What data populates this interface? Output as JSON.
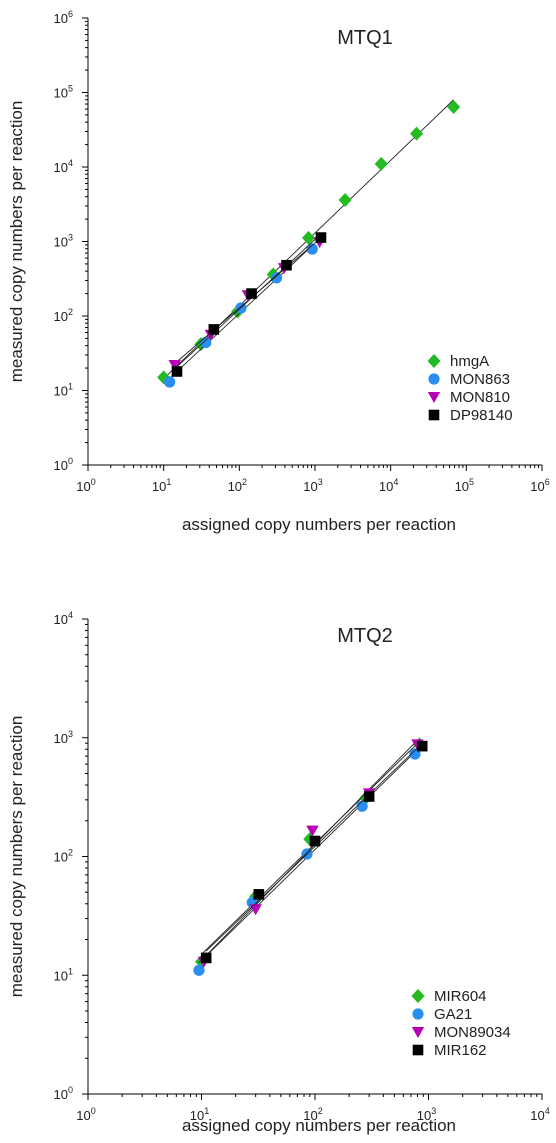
{
  "chart_data": [
    {
      "type": "scatter",
      "title": "MTQ1",
      "xlabel": "assigned copy numbers per reaction",
      "ylabel": "measured copy numbers per reaction",
      "xscale": "log",
      "yscale": "log",
      "xlim": [
        1,
        1000000
      ],
      "ylim": [
        1,
        1000000
      ],
      "tick_exponents": [
        "0",
        "1",
        "2",
        "3",
        "4",
        "5",
        "6"
      ],
      "tick_base": "10",
      "legend_position": "bottom-right",
      "trend_lines": true,
      "series": [
        {
          "name": "hmgA",
          "color": "#22bb22",
          "marker": "diamond",
          "x": [
            10,
            31,
            95,
            280,
            820,
            2500,
            7500,
            22000,
            68000
          ],
          "y": [
            15,
            42,
            115,
            360,
            1120,
            3600,
            11000,
            28000,
            64000
          ]
        },
        {
          "name": "MON863",
          "color": "#2a8ef0",
          "marker": "circle",
          "x": [
            12,
            36,
            105,
            310,
            920
          ],
          "y": [
            13,
            44,
            128,
            325,
            790
          ]
        },
        {
          "name": "MON810",
          "color": "#b800b8",
          "marker": "triangle-down",
          "x": [
            14,
            42,
            130,
            390,
            1150
          ],
          "y": [
            22,
            56,
            190,
            440,
            980
          ]
        },
        {
          "name": "DP98140",
          "color": "#000000",
          "marker": "square",
          "x": [
            15,
            46,
            145,
            420,
            1200
          ],
          "y": [
            18,
            66,
            200,
            480,
            1130
          ]
        }
      ]
    },
    {
      "type": "scatter",
      "title": "MTQ2",
      "xlabel": "assigned copy numbers per reaction",
      "ylabel": "measured copy numbers per reaction",
      "xscale": "log",
      "yscale": "log",
      "xlim": [
        1,
        10000
      ],
      "ylim": [
        1,
        10000
      ],
      "tick_exponents": [
        "0",
        "1",
        "2",
        "3",
        "4"
      ],
      "tick_base": "10",
      "legend_position": "bottom-right",
      "trend_lines": true,
      "series": [
        {
          "name": "MIR604",
          "color": "#22bb22",
          "marker": "diamond",
          "x": [
            10,
            30,
            90,
            280,
            830
          ],
          "y": [
            13,
            46,
            140,
            310,
            880
          ]
        },
        {
          "name": "GA21",
          "color": "#2a8ef0",
          "marker": "circle",
          "x": [
            9.5,
            28,
            85,
            260,
            760
          ],
          "y": [
            11,
            41,
            105,
            265,
            730
          ]
        },
        {
          "name": "MON89034",
          "color": "#b800b8",
          "marker": "triangle-down",
          "x": [
            10.5,
            30,
            95,
            300,
            800
          ],
          "y": [
            13,
            36,
            165,
            340,
            880
          ]
        },
        {
          "name": "MIR162",
          "color": "#000000",
          "marker": "square",
          "x": [
            11,
            32,
            100,
            300,
            880
          ],
          "y": [
            14,
            48,
            135,
            320,
            850
          ]
        }
      ]
    }
  ]
}
